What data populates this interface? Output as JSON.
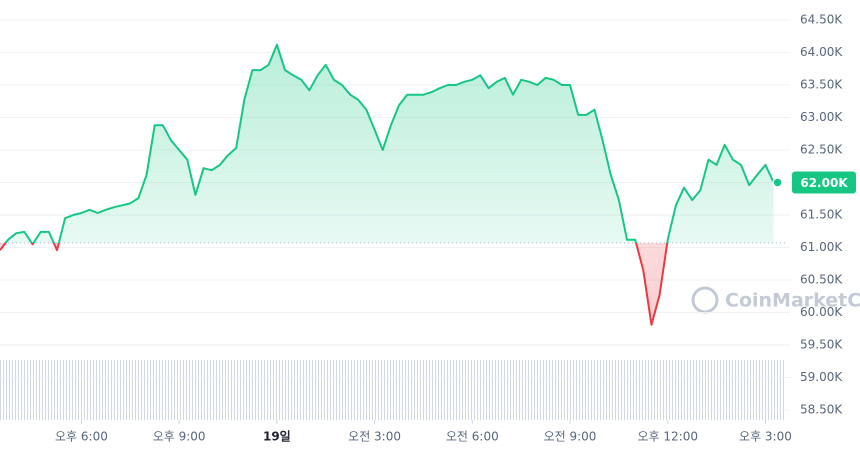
{
  "chart_data": {
    "type": "line",
    "x": [
      15.5,
      15.75,
      16,
      16.25,
      16.5,
      16.75,
      17,
      17.25,
      17.5,
      17.75,
      18,
      18.25,
      18.5,
      18.75,
      19,
      19.25,
      19.5,
      19.75,
      20,
      20.25,
      20.5,
      20.75,
      21,
      21.25,
      21.5,
      21.75,
      22,
      22.25,
      22.5,
      22.75,
      23,
      23.25,
      23.5,
      23.75,
      24,
      24.25,
      24.5,
      24.75,
      25,
      25.25,
      25.5,
      25.75,
      26,
      26.25,
      26.5,
      26.75,
      27,
      27.25,
      27.5,
      27.75,
      28,
      28.25,
      28.5,
      28.75,
      29,
      29.25,
      29.5,
      29.75,
      30,
      30.25,
      30.5,
      30.75,
      31,
      31.25,
      31.5,
      31.75,
      32,
      32.25,
      32.5,
      32.75,
      33,
      33.25,
      33.5,
      33.75,
      34,
      34.25,
      34.5,
      34.75,
      35,
      35.25,
      35.5,
      35.75,
      36,
      36.25,
      36.5,
      36.75,
      37,
      37.25,
      37.5,
      37.75,
      38,
      38.25,
      38.5,
      38.75,
      39,
      39.25
    ],
    "series": [
      {
        "values": [
          60.96,
          61.12,
          61.22,
          61.24,
          61.05,
          61.24,
          61.24,
          60.96,
          61.45,
          61.5,
          61.53,
          61.58,
          61.53,
          61.58,
          61.62,
          61.65,
          61.68,
          61.76,
          62.12,
          62.88,
          62.88,
          62.65,
          62.5,
          62.35,
          61.81,
          62.22,
          62.19,
          62.27,
          62.42,
          62.53,
          63.27,
          63.73,
          63.73,
          63.81,
          64.12,
          63.73,
          63.65,
          63.58,
          63.42,
          63.65,
          63.81,
          63.58,
          63.5,
          63.35,
          63.27,
          63.12,
          62.81,
          62.5,
          62.88,
          63.19,
          63.35,
          63.35,
          63.35,
          63.39,
          63.45,
          63.5,
          63.5,
          63.55,
          63.58,
          63.65,
          63.45,
          63.55,
          63.61,
          63.35,
          63.58,
          63.55,
          63.5,
          63.61,
          63.58,
          63.5,
          63.5,
          63.04,
          63.04,
          63.12,
          62.65,
          62.12,
          61.73,
          61.12,
          61.12,
          60.65,
          59.81,
          60.27,
          61.12,
          61.65,
          61.92,
          61.73,
          61.88,
          62.35,
          62.27,
          62.58,
          62.35,
          62.27,
          61.96,
          62.12,
          62.27,
          62.0
        ],
        "color": "#16c784",
        "down_color": "#ea3943"
      }
    ],
    "baseline": 61.07,
    "current_label": "62.00K",
    "watermark": "CoinMarketCap",
    "xlim": [
      15.5,
      39.6
    ],
    "xticks": [
      {
        "value": 18,
        "label": "오후 6:00"
      },
      {
        "value": 21,
        "label": "오후 9:00"
      },
      {
        "value": 24,
        "label": "19일"
      },
      {
        "value": 27,
        "label": "오전 3:00"
      },
      {
        "value": 30,
        "label": "오전 6:00"
      },
      {
        "value": 33,
        "label": "오전 9:00"
      },
      {
        "value": 36,
        "label": "오후 12:00"
      },
      {
        "value": 39,
        "label": "오후 3:00"
      }
    ],
    "ylim": [
      58.5,
      64.5
    ],
    "yticks": [
      {
        "value": 58.5,
        "label": "58.50K"
      },
      {
        "value": 59,
        "label": "59.00K"
      },
      {
        "value": 59.5,
        "label": "59.50K"
      },
      {
        "value": 60,
        "label": "60.00K"
      },
      {
        "value": 60.5,
        "label": "60.50K"
      },
      {
        "value": 61,
        "label": "61.00K"
      },
      {
        "value": 61.5,
        "label": "61.50K"
      },
      {
        "value": 62,
        "label": "62.00K"
      },
      {
        "value": 62.5,
        "label": "62.50K"
      },
      {
        "value": 63,
        "label": "63.00K"
      },
      {
        "value": 63.5,
        "label": "63.50K"
      },
      {
        "value": 64,
        "label": "64.00K"
      },
      {
        "value": 64.5,
        "label": "64.50K"
      }
    ],
    "grid": true
  }
}
